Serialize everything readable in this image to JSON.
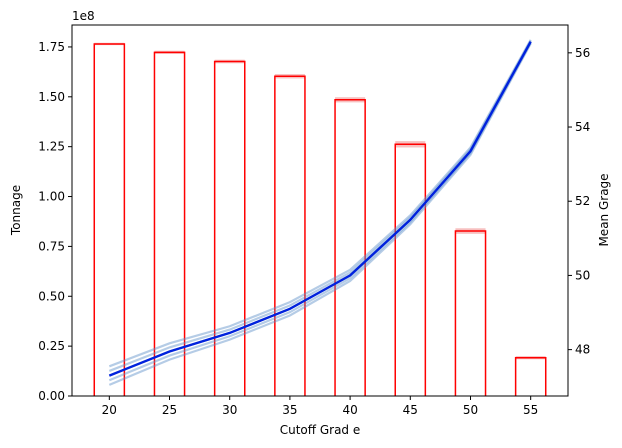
{
  "chart_data": {
    "type": "bar",
    "xlabel": "Cutoff Grad e",
    "ylabel": "Tonnage",
    "y2label": "Mean Grage",
    "offset_text": "1e8",
    "categories": [
      20,
      25,
      30,
      35,
      40,
      45,
      50,
      55
    ],
    "xticks": [
      "20",
      "25",
      "30",
      "35",
      "40",
      "45",
      "50",
      "55"
    ],
    "xlim": [
      16.9,
      58.1
    ],
    "ylim": [
      0,
      1.86
    ],
    "y_scale": 100000000,
    "yticks": [
      "0.00",
      "0.25",
      "0.50",
      "0.75",
      "1.00",
      "1.25",
      "1.50",
      "1.75"
    ],
    "y2lim": [
      46.75,
      56.75
    ],
    "y2ticks": [
      "48",
      "50",
      "52",
      "54",
      "56"
    ],
    "grid": false,
    "series": [
      {
        "kind": "bar",
        "axis": "left",
        "color": "#ff0000",
        "values": [
          1.765,
          1.723,
          1.677,
          1.603,
          1.485,
          1.262,
          0.827,
          0.192
        ],
        "spread": [
          0.006,
          0.008,
          0.009,
          0.011,
          0.013,
          0.016,
          0.014,
          0.008
        ]
      },
      {
        "kind": "line",
        "axis": "right",
        "color": "#0022dd",
        "realization_color": "#5b8fc7",
        "x": [
          20,
          25,
          30,
          35,
          40,
          45,
          50,
          55
        ],
        "values": [
          47.3,
          47.95,
          48.45,
          49.1,
          50.0,
          51.5,
          53.35,
          56.3
        ],
        "spread": [
          0.25,
          0.22,
          0.18,
          0.18,
          0.15,
          0.12,
          0.1,
          0.05
        ]
      }
    ]
  }
}
